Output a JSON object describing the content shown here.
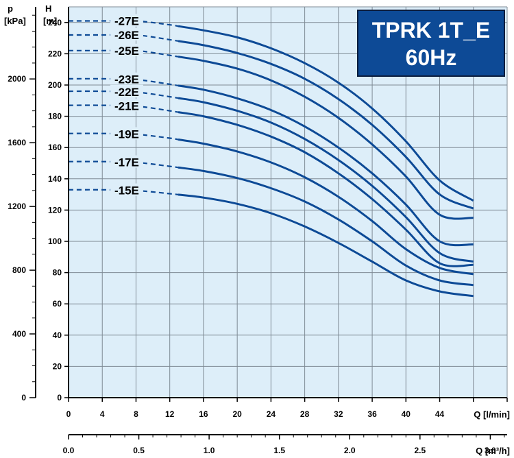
{
  "title_line1": "TPRK 1T_E",
  "title_line2": "60Hz",
  "axis_labels": {
    "p_symbol": "p",
    "p_unit": "[kPa]",
    "h_symbol": "H",
    "h_unit": "[m]",
    "q_lmin": "Q [l/min]",
    "q_m3h": "Q [m³/h]"
  },
  "colors": {
    "plot_background": "#ddeef9",
    "grid": "#7e8a94",
    "curve": "#0d4a96",
    "title_box": "#0d4a96"
  },
  "chart_data": {
    "type": "line",
    "x_unit": "l/min",
    "xlim": [
      0,
      52
    ],
    "ylim": [
      0,
      250
    ],
    "x_ticks": [
      0,
      4,
      8,
      12,
      16,
      20,
      24,
      28,
      32,
      36,
      40,
      44
    ],
    "y_ticks": [
      0,
      20,
      40,
      60,
      80,
      100,
      120,
      140,
      160,
      180,
      200,
      220,
      240
    ],
    "p_ticks": [
      0,
      400,
      800,
      1200,
      1600,
      2000
    ],
    "q_m3h_ticks": [
      "0.0",
      "0.5",
      "1.0",
      "1.5",
      "2.0",
      "2.5",
      "3.0"
    ],
    "grid": true,
    "dashed_region_end_q": 13,
    "series": [
      {
        "name": "-27E",
        "values": [
          [
            0,
            241
          ],
          [
            4,
            241
          ],
          [
            8,
            241
          ],
          [
            12,
            238.5
          ],
          [
            16,
            235
          ],
          [
            20,
            230.5
          ],
          [
            24,
            223.5
          ],
          [
            28,
            214
          ],
          [
            32,
            201.5
          ],
          [
            36,
            185
          ],
          [
            40,
            164
          ],
          [
            44,
            139
          ],
          [
            48,
            126
          ]
        ]
      },
      {
        "name": "-26E",
        "values": [
          [
            0,
            232
          ],
          [
            4,
            232
          ],
          [
            8,
            232
          ],
          [
            12,
            229
          ],
          [
            16,
            225.5
          ],
          [
            20,
            220.5
          ],
          [
            24,
            213.5
          ],
          [
            28,
            204
          ],
          [
            32,
            191
          ],
          [
            36,
            174.5
          ],
          [
            40,
            154
          ],
          [
            44,
            130
          ],
          [
            48,
            121
          ]
        ]
      },
      {
        "name": "-25E",
        "values": [
          [
            0,
            222
          ],
          [
            4,
            222
          ],
          [
            8,
            222
          ],
          [
            12,
            219
          ],
          [
            16,
            215.5
          ],
          [
            20,
            210.5
          ],
          [
            24,
            203
          ],
          [
            28,
            192.5
          ],
          [
            32,
            179
          ],
          [
            36,
            162
          ],
          [
            40,
            141.5
          ],
          [
            44,
            117
          ],
          [
            48,
            115
          ]
        ]
      },
      {
        "name": "-23E",
        "values": [
          [
            0,
            204
          ],
          [
            4,
            204
          ],
          [
            8,
            203.5
          ],
          [
            12,
            200.5
          ],
          [
            16,
            197
          ],
          [
            20,
            191.5
          ],
          [
            24,
            184
          ],
          [
            28,
            173.5
          ],
          [
            32,
            160
          ],
          [
            36,
            143.5
          ],
          [
            40,
            123.5
          ],
          [
            44,
            100
          ],
          [
            48,
            98
          ]
        ]
      },
      {
        "name": "-22E",
        "values": [
          [
            0,
            196
          ],
          [
            4,
            196
          ],
          [
            8,
            195.5
          ],
          [
            12,
            192.5
          ],
          [
            16,
            189
          ],
          [
            20,
            183.5
          ],
          [
            24,
            176
          ],
          [
            28,
            165.5
          ],
          [
            32,
            152
          ],
          [
            36,
            135.5
          ],
          [
            40,
            115.5
          ],
          [
            44,
            92.5
          ],
          [
            48,
            87
          ]
        ]
      },
      {
        "name": "-21E",
        "values": [
          [
            0,
            187
          ],
          [
            4,
            187
          ],
          [
            8,
            186.5
          ],
          [
            12,
            183.5
          ],
          [
            16,
            180
          ],
          [
            20,
            174.5
          ],
          [
            24,
            167
          ],
          [
            28,
            157
          ],
          [
            32,
            143.5
          ],
          [
            36,
            127
          ],
          [
            40,
            107.5
          ],
          [
            44,
            86
          ],
          [
            48,
            85
          ]
        ]
      },
      {
        "name": "-19E",
        "values": [
          [
            0,
            169
          ],
          [
            4,
            169
          ],
          [
            8,
            168.5
          ],
          [
            12,
            166
          ],
          [
            16,
            162.5
          ],
          [
            20,
            157.5
          ],
          [
            24,
            150.5
          ],
          [
            28,
            141
          ],
          [
            32,
            128.5
          ],
          [
            36,
            113
          ],
          [
            40,
            95
          ],
          [
            44,
            83
          ],
          [
            48,
            79
          ]
        ]
      },
      {
        "name": "-17E",
        "values": [
          [
            0,
            151
          ],
          [
            4,
            151
          ],
          [
            8,
            150.5
          ],
          [
            12,
            148
          ],
          [
            16,
            145
          ],
          [
            20,
            140.5
          ],
          [
            24,
            134
          ],
          [
            28,
            125.5
          ],
          [
            32,
            114
          ],
          [
            36,
            100
          ],
          [
            40,
            84.5
          ],
          [
            44,
            75
          ],
          [
            48,
            72
          ]
        ]
      },
      {
        "name": "-15E",
        "values": [
          [
            0,
            133
          ],
          [
            4,
            133
          ],
          [
            8,
            132.5
          ],
          [
            12,
            130.5
          ],
          [
            16,
            128
          ],
          [
            20,
            124
          ],
          [
            24,
            118
          ],
          [
            28,
            109.5
          ],
          [
            32,
            99
          ],
          [
            36,
            87
          ],
          [
            40,
            75
          ],
          [
            44,
            68
          ],
          [
            48,
            65
          ]
        ]
      }
    ]
  }
}
